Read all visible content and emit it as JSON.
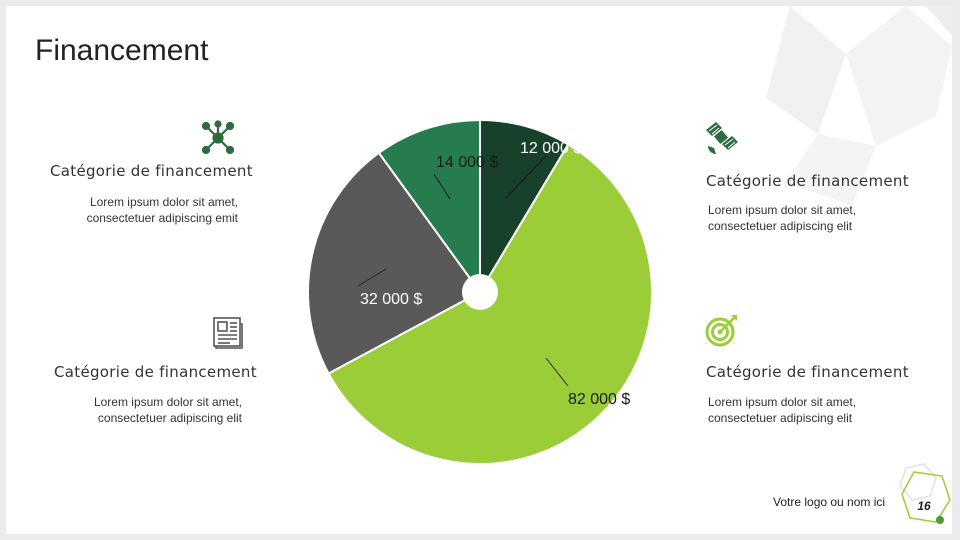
{
  "slide": {
    "title": "Financement"
  },
  "blocks": [
    {
      "category": "Catégorie de financement",
      "body": [
        "Lorem ipsum dolor sit amet,",
        "consectetuer adipiscing emit"
      ],
      "icon": "network-icon"
    },
    {
      "category": "Catégorie de financement",
      "body": [
        "Lorem ipsum dolor sit amet,",
        "consectetuer adipiscing elit"
      ],
      "icon": "satellite-icon"
    },
    {
      "category": "Catégorie de financement",
      "body": [
        "Lorem ipsum dolor sit amet,",
        "consectetuer adipiscing elit"
      ],
      "icon": "newspaper-icon"
    },
    {
      "category": "Catégorie de financement",
      "body": [
        "Lorem ipsum dolor sit amet,",
        "consectetuer adipiscing elit"
      ],
      "icon": "target-icon"
    }
  ],
  "chart_data": {
    "type": "pie",
    "slices": [
      {
        "label": "12 000 $",
        "value": 12000,
        "color": "#17412b"
      },
      {
        "label": "82 000 $",
        "value": 82000,
        "color": "#9acd38"
      },
      {
        "label": "32 000 $",
        "value": 32000,
        "color": "#595959"
      },
      {
        "label": "14 000 $",
        "value": 14000,
        "color": "#267b4f"
      }
    ]
  },
  "footer": {
    "logo_text": "Votre logo ou nom ici",
    "page_number": "16"
  },
  "colors": {
    "accent_green": "#9acd38",
    "dark_green": "#17412b",
    "icon_green": "#2e6b3e",
    "gray": "#595959"
  }
}
